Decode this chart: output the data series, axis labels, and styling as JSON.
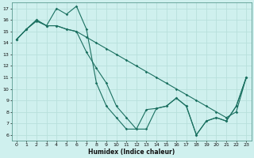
{
  "xlabel": "Humidex (Indice chaleur)",
  "bg_color": "#cff0ee",
  "grid_color": "#b8e0dc",
  "line_color": "#1a7060",
  "ylim": [
    5.5,
    17.5
  ],
  "xlim": [
    -0.5,
    23.5
  ],
  "yticks": [
    6,
    7,
    8,
    9,
    10,
    11,
    12,
    13,
    14,
    15,
    16,
    17
  ],
  "xticks": [
    0,
    1,
    2,
    3,
    4,
    5,
    6,
    7,
    8,
    9,
    10,
    11,
    12,
    13,
    14,
    15,
    16,
    17,
    18,
    19,
    20,
    21,
    22,
    23
  ],
  "series1": [
    14.3,
    15.2,
    16.0,
    15.5,
    17.0,
    16.5,
    17.2,
    15.2,
    10.5,
    8.5,
    7.5,
    6.5,
    6.5,
    8.2,
    8.3,
    8.5,
    9.2,
    8.5,
    6.0,
    7.2,
    7.5,
    7.2,
    8.5,
    11.0
  ],
  "series2": [
    14.3,
    15.2,
    15.9,
    15.5,
    15.5,
    15.2,
    15.0,
    14.5,
    14.0,
    13.5,
    13.0,
    12.5,
    12.0,
    11.5,
    11.0,
    10.5,
    10.0,
    9.5,
    9.0,
    8.5,
    8.0,
    7.5,
    8.0,
    11.0
  ],
  "series3": [
    14.3,
    15.2,
    16.0,
    15.5,
    15.5,
    15.2,
    15.0,
    13.2,
    11.8,
    10.5,
    8.5,
    7.5,
    6.5,
    6.5,
    8.3,
    8.5,
    9.2,
    8.5,
    6.0,
    7.2,
    7.5,
    7.2,
    8.5,
    11.0
  ]
}
